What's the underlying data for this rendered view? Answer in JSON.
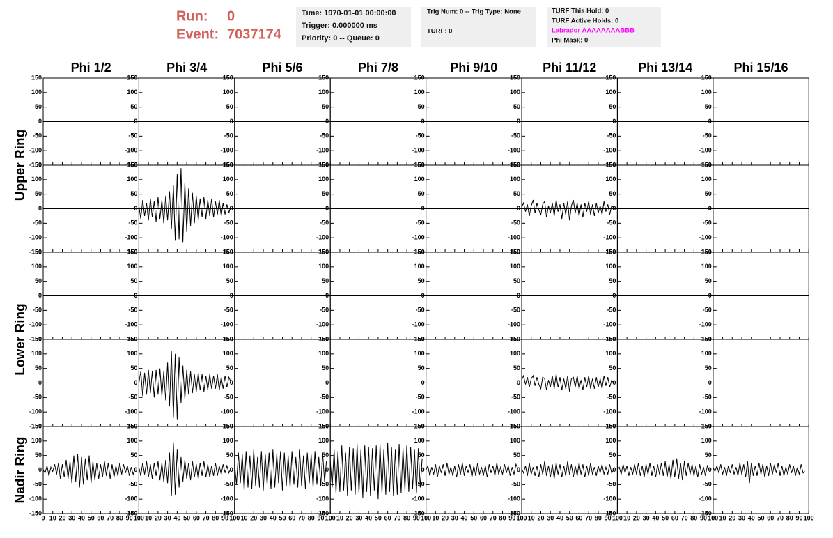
{
  "header": {
    "run_label": "Run:",
    "run": "0",
    "event_label": "Event:",
    "event": "7037174",
    "time_box": [
      "Time: 1970-01-01 00:00:00",
      "Trigger: 0.000000 ms",
      "Priority: 0 -- Queue: 0"
    ],
    "trig_box": [
      "Trig Num: 0 -- Trig Type: None",
      "TURF: 0"
    ],
    "turf_box": [
      "TURF This Hold: 0",
      "TURF Active Holds: 0",
      "Labrador AAAAAAAABBB",
      "Phi Mask: 0"
    ]
  },
  "chart_data": {
    "type": "line",
    "color": "#000000",
    "columns": [
      "Phi 1/2",
      "Phi 3/4",
      "Phi 5/6",
      "Phi 7/8",
      "Phi 9/10",
      "Phi 11/12",
      "Phi 13/14",
      "Phi 15/16"
    ],
    "row_labels": [
      "Upper Ring",
      "Lower Ring",
      "Nadir Ring"
    ],
    "xlim": [
      0,
      100
    ],
    "xticks": [
      0,
      10,
      20,
      30,
      40,
      50,
      60,
      70,
      80,
      90,
      100
    ],
    "ylim": [
      -150,
      150
    ],
    "yticks": [
      -150,
      -100,
      -50,
      0,
      50,
      100,
      150
    ],
    "x": [
      0,
      2,
      4,
      6,
      8,
      10,
      12,
      14,
      16,
      18,
      20,
      22,
      24,
      26,
      28,
      30,
      32,
      34,
      36,
      38,
      40,
      42,
      44,
      46,
      48,
      50,
      52,
      54,
      56,
      58,
      60,
      62,
      64,
      66,
      68,
      70,
      72,
      74,
      76,
      78,
      80,
      82,
      84,
      86,
      88,
      90,
      92,
      94,
      96
    ],
    "panels": [
      [
        null,
        null,
        null,
        null,
        null,
        null,
        null,
        null
      ],
      [
        null,
        {
          "values": [
            10,
            -35,
            30,
            -25,
            20,
            -40,
            35,
            -30,
            25,
            -45,
            40,
            -35,
            30,
            -50,
            45,
            -40,
            60,
            -70,
            80,
            -110,
            120,
            -105,
            140,
            -115,
            90,
            -80,
            70,
            -60,
            55,
            -50,
            45,
            -40,
            35,
            -30,
            40,
            -35,
            30,
            -25,
            35,
            -30,
            25,
            -20,
            30,
            -25,
            20,
            -20,
            15,
            -15,
            10
          ]
        },
        null,
        null,
        null,
        {
          "values": [
            5,
            20,
            -10,
            15,
            -25,
            10,
            30,
            -15,
            20,
            -5,
            -20,
            15,
            25,
            -30,
            10,
            -15,
            20,
            -25,
            30,
            -10,
            15,
            -35,
            20,
            -20,
            25,
            -40,
            10,
            30,
            -15,
            20,
            -25,
            15,
            -30,
            20,
            -10,
            25,
            -20,
            15,
            -25,
            20,
            -15,
            10,
            -20,
            25,
            -10,
            15,
            -20,
            10,
            5
          ]
        },
        null,
        null
      ],
      [
        null,
        null,
        null,
        null,
        null,
        null,
        null,
        null
      ],
      [
        null,
        {
          "values": [
            0,
            40,
            -45,
            35,
            -40,
            45,
            -35,
            40,
            -50,
            45,
            -40,
            50,
            -45,
            40,
            -60,
            70,
            -80,
            110,
            -120,
            100,
            -125,
            90,
            -70,
            60,
            -55,
            45,
            -40,
            40,
            -35,
            30,
            -30,
            35,
            -25,
            30,
            -30,
            25,
            -25,
            30,
            -20,
            25,
            -20,
            30,
            -25,
            20,
            -20,
            25,
            -15,
            20,
            5
          ]
        },
        null,
        null,
        null,
        {
          "values": [
            10,
            25,
            -5,
            20,
            -15,
            15,
            25,
            -10,
            20,
            -5,
            -20,
            20,
            15,
            -25,
            10,
            -15,
            25,
            -20,
            30,
            -15,
            20,
            -25,
            15,
            -20,
            25,
            -30,
            15,
            20,
            -15,
            25,
            -20,
            10,
            -25,
            20,
            -15,
            25,
            -20,
            15,
            -20,
            20,
            -15,
            15,
            -20,
            25,
            -10,
            20,
            -15,
            10,
            0
          ]
        },
        null,
        null
      ],
      [
        {
          "values": [
            0,
            -10,
            15,
            -20,
            10,
            -5,
            20,
            -15,
            25,
            -30,
            20,
            -25,
            35,
            -30,
            30,
            -45,
            50,
            -40,
            55,
            -60,
            45,
            -50,
            40,
            -35,
            50,
            -45,
            30,
            -35,
            25,
            -30,
            20,
            -25,
            30,
            -20,
            25,
            -30,
            20,
            -25,
            15,
            -20,
            25,
            -15,
            20,
            -10,
            15,
            -20,
            10,
            -15,
            5
          ]
        },
        {
          "values": [
            10,
            -20,
            25,
            -15,
            30,
            -25,
            20,
            -30,
            25,
            -20,
            30,
            -35,
            25,
            -40,
            35,
            -45,
            60,
            -90,
            95,
            -85,
            70,
            -60,
            45,
            -40,
            35,
            -30,
            25,
            -35,
            30,
            -25,
            20,
            -30,
            25,
            -20,
            30,
            -25,
            20,
            -25,
            15,
            -20,
            25,
            -20,
            15,
            -15,
            20,
            -10,
            15,
            -10,
            5
          ]
        },
        {
          "values": [
            20,
            -50,
            60,
            -45,
            55,
            -70,
            65,
            -60,
            50,
            -65,
            70,
            -55,
            45,
            -60,
            65,
            -70,
            55,
            -50,
            60,
            -65,
            70,
            -60,
            55,
            -45,
            65,
            -70,
            60,
            -55,
            50,
            -60,
            65,
            -50,
            45,
            -60,
            70,
            -55,
            50,
            -65,
            60,
            -45,
            55,
            -60,
            65,
            -50,
            45,
            -55,
            60,
            -40,
            30
          ]
        },
        {
          "values": [
            30,
            -60,
            70,
            -80,
            65,
            -75,
            85,
            -70,
            60,
            -90,
            80,
            -70,
            75,
            -85,
            90,
            -80,
            70,
            -95,
            85,
            -75,
            80,
            -90,
            75,
            -70,
            85,
            -100,
            90,
            -80,
            70,
            -85,
            95,
            -75,
            80,
            -90,
            70,
            -85,
            90,
            -80,
            75,
            -70,
            85,
            -75,
            80,
            -65,
            70,
            -80,
            75,
            -60,
            40
          ]
        },
        {
          "values": [
            0,
            15,
            -20,
            10,
            -15,
            20,
            -25,
            15,
            -10,
            20,
            -20,
            25,
            -15,
            10,
            -20,
            15,
            -25,
            20,
            -15,
            25,
            -20,
            15,
            -10,
            20,
            -25,
            15,
            -20,
            25,
            -15,
            10,
            -20,
            15,
            -25,
            20,
            -10,
            15,
            -20,
            25,
            -15,
            10,
            -15,
            20,
            -10,
            15,
            -20,
            10,
            -15,
            20,
            5
          ]
        },
        {
          "values": [
            5,
            -10,
            15,
            -20,
            25,
            -15,
            10,
            -20,
            15,
            -25,
            20,
            -15,
            30,
            -20,
            15,
            -25,
            20,
            -30,
            25,
            -15,
            20,
            -25,
            15,
            -20,
            30,
            -15,
            20,
            -25,
            15,
            -20,
            25,
            -15,
            20,
            -25,
            15,
            -20,
            25,
            -15,
            10,
            -20,
            15,
            -10,
            20,
            -15,
            10,
            -15,
            20,
            -10,
            0
          ]
        },
        {
          "values": [
            0,
            10,
            -15,
            20,
            -10,
            15,
            -20,
            10,
            -15,
            20,
            -15,
            25,
            -20,
            15,
            -25,
            20,
            -15,
            25,
            -20,
            15,
            -25,
            20,
            -15,
            25,
            -20,
            30,
            -25,
            20,
            -30,
            35,
            -25,
            40,
            -30,
            25,
            -35,
            30,
            -20,
            25,
            -15,
            20,
            -20,
            15,
            -25,
            20,
            -15,
            10,
            -20,
            15,
            0
          ]
        },
        {
          "values": [
            10,
            -5,
            15,
            -10,
            20,
            -15,
            10,
            -20,
            15,
            -10,
            20,
            -15,
            10,
            -20,
            25,
            -15,
            20,
            -25,
            30,
            -45,
            25,
            -20,
            15,
            -20,
            25,
            -15,
            20,
            -25,
            15,
            -20,
            25,
            -15,
            20,
            -10,
            25,
            -20,
            15,
            -20,
            10,
            -15,
            20,
            -10,
            15,
            -20,
            10,
            -15,
            20,
            -10,
            -5
          ]
        }
      ]
    ]
  }
}
